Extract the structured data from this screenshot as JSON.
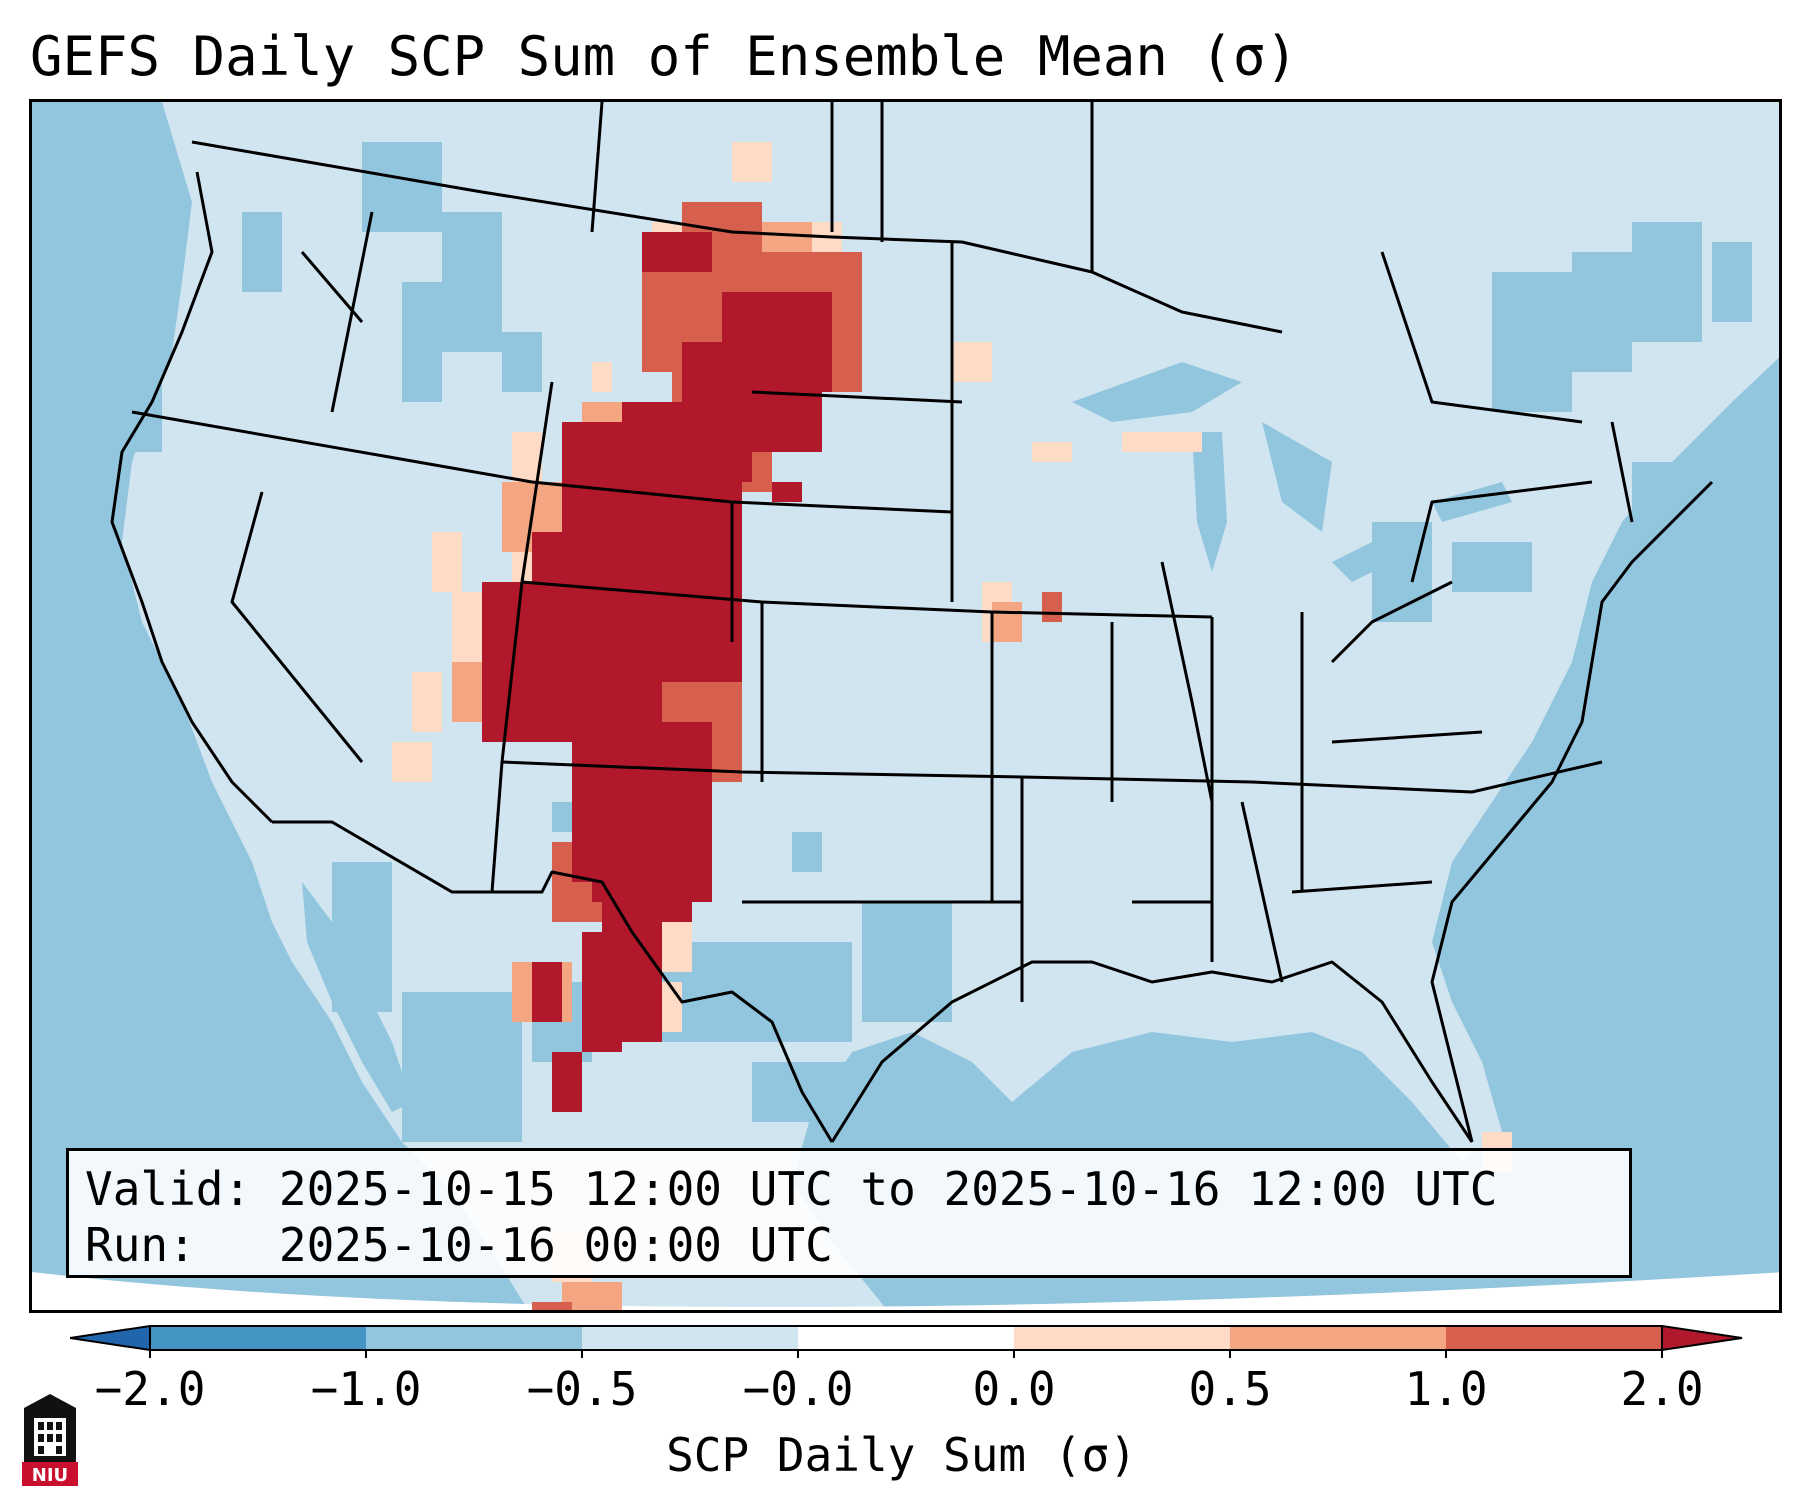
{
  "title": "GEFS Daily SCP Sum of Ensemble Mean (σ)",
  "info": {
    "valid_label": "Valid:",
    "valid_value": "2025-10-15 12:00 UTC to 2025-10-16 12:00 UTC",
    "run_label": "Run:",
    "run_value": "2025-10-16 00:00 UTC"
  },
  "colorbar": {
    "label": "SCP Daily Sum (σ)",
    "ticks": [
      "−2.0",
      "−1.0",
      "−0.5",
      "−0.0",
      "0.0",
      "0.5",
      "1.0",
      "2.0"
    ],
    "colors": [
      "#4393c3",
      "#92c5de",
      "#d1e5f0",
      "#fddbc7",
      "#f4a582",
      "#d6604d"
    ],
    "under_color": "#2166ac",
    "over_color": "#b2182b"
  },
  "map": {
    "land_color": "#d1e5f0",
    "ocean_color": "#92c5de",
    "high_color": "#b2182b",
    "med_color": "#d6604d"
  },
  "logo": {
    "text": "NIU"
  }
}
